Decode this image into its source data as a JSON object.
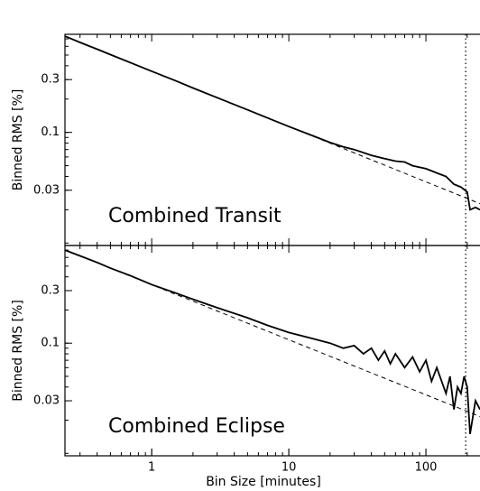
{
  "chart_data": [
    {
      "type": "line",
      "annotation": "Combined Transit",
      "ylabel": "Binned RMS [%]",
      "xscale": "log",
      "yscale": "log",
      "xlim": [
        0.233,
        248
      ],
      "ylim": [
        0.0095,
        0.77
      ],
      "yticks": [
        0.03,
        0.1,
        0.3
      ],
      "vlines": [
        195
      ],
      "series": [
        {
          "color": "#000000",
          "style": "solid",
          "x": [
            0.233,
            0.3,
            0.4,
            0.5,
            0.7,
            1,
            1.5,
            2,
            3,
            5,
            7,
            10,
            15,
            20,
            25,
            30,
            40,
            50,
            60,
            70,
            80,
            100,
            120,
            140,
            160,
            180,
            200,
            210,
            230,
            248
          ],
          "values": [
            0.74,
            0.65,
            0.565,
            0.505,
            0.427,
            0.357,
            0.292,
            0.252,
            0.206,
            0.16,
            0.135,
            0.113,
            0.093,
            0.081,
            0.074,
            0.07,
            0.062,
            0.058,
            0.055,
            0.054,
            0.05,
            0.047,
            0.043,
            0.04,
            0.034,
            0.032,
            0.029,
            0.02,
            0.021,
            0.02
          ]
        },
        {
          "color": "#000000",
          "style": "dashed",
          "x": [
            0.233,
            248
          ],
          "values": [
            0.74,
            0.0227
          ]
        }
      ]
    },
    {
      "type": "line",
      "annotation": "Combined Eclipse",
      "ylabel": "Binned RMS [%]",
      "xlabel": "Bin Size [minutes]",
      "xscale": "log",
      "yscale": "log",
      "xlim": [
        0.233,
        248
      ],
      "ylim": [
        0.0095,
        0.77
      ],
      "xticks": [
        1,
        10,
        100
      ],
      "yticks": [
        0.03,
        0.1,
        0.3
      ],
      "vlines": [
        195
      ],
      "series": [
        {
          "color": "#000000",
          "style": "solid",
          "x": [
            0.233,
            0.3,
            0.4,
            0.5,
            0.7,
            1,
            1.5,
            2,
            3,
            5,
            7,
            10,
            15,
            20,
            25,
            30,
            35,
            40,
            45,
            50,
            55,
            60,
            70,
            80,
            90,
            100,
            110,
            120,
            140,
            150,
            160,
            170,
            180,
            190,
            200,
            210,
            230,
            248
          ],
          "values": [
            0.7,
            0.62,
            0.54,
            0.48,
            0.41,
            0.34,
            0.285,
            0.25,
            0.21,
            0.17,
            0.145,
            0.125,
            0.11,
            0.1,
            0.09,
            0.095,
            0.08,
            0.09,
            0.07,
            0.085,
            0.065,
            0.08,
            0.06,
            0.075,
            0.055,
            0.07,
            0.045,
            0.06,
            0.035,
            0.05,
            0.025,
            0.04,
            0.035,
            0.05,
            0.04,
            0.015,
            0.03,
            0.025
          ]
        },
        {
          "color": "#000000",
          "style": "dashed",
          "x": [
            0.233,
            248
          ],
          "values": [
            0.703,
            0.0216
          ]
        }
      ]
    }
  ]
}
